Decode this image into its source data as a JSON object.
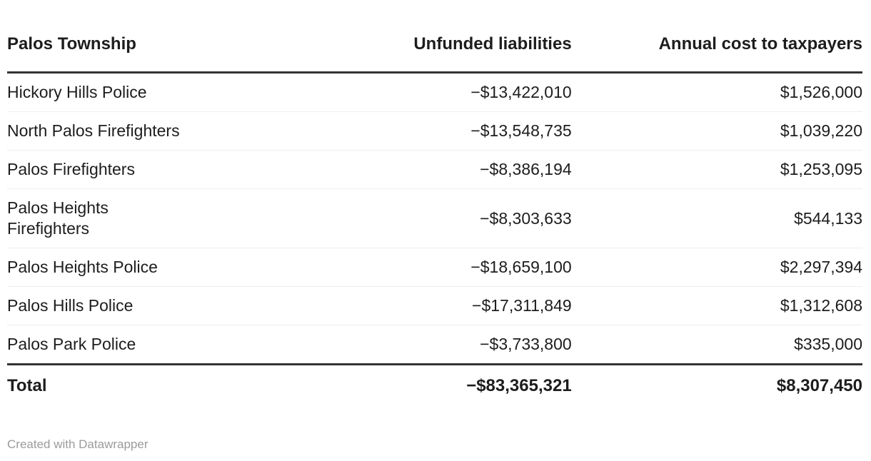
{
  "header": {
    "row_label_column": "Palos Township",
    "col_unfunded": "Unfunded liabilities",
    "col_annual": "Annual cost to taxpayers"
  },
  "rows": [
    {
      "name": "Hickory Hills Police",
      "unfunded": "−$13,422,010",
      "annual": "$1,526,000"
    },
    {
      "name": "North Palos Firefighters",
      "unfunded": "−$13,548,735",
      "annual": "$1,039,220"
    },
    {
      "name": "Palos Firefighters",
      "unfunded": "−$8,386,194",
      "annual": "$1,253,095"
    },
    {
      "name": "Palos Heights\nFirefighters",
      "unfunded": "−$8,303,633",
      "annual": "$544,133"
    },
    {
      "name": "Palos Heights Police",
      "unfunded": "−$18,659,100",
      "annual": "$2,297,394"
    },
    {
      "name": "Palos Hills Police",
      "unfunded": "−$17,311,849",
      "annual": "$1,312,608"
    },
    {
      "name": "Palos Park Police",
      "unfunded": "−$3,733,800",
      "annual": "$335,000"
    }
  ],
  "total": {
    "name": "Total",
    "unfunded": "−$83,365,321",
    "annual": "$8,307,450"
  },
  "footer": {
    "credit": "Created with Datawrapper"
  },
  "colors": {
    "text": "#1d1d1d",
    "thick_rule": "#333333",
    "thin_rule": "#eeeeee",
    "credit_text": "#9b9b9b",
    "background": "#ffffff"
  },
  "chart_data": {
    "type": "table",
    "title": "Palos Township",
    "columns": [
      "Palos Township",
      "Unfunded liabilities",
      "Annual cost to taxpayers"
    ],
    "rows": [
      [
        "Hickory Hills Police",
        -13422010,
        1526000
      ],
      [
        "North Palos Firefighters",
        -13548735,
        1039220
      ],
      [
        "Palos Firefighters",
        -8386194,
        1253095
      ],
      [
        "Palos Heights Firefighters",
        -8303633,
        544133
      ],
      [
        "Palos Heights Police",
        -18659100,
        2297394
      ],
      [
        "Palos Hills Police",
        -17311849,
        1312608
      ],
      [
        "Palos Park Police",
        -3733800,
        335000
      ]
    ],
    "total": [
      "Total",
      -83365321,
      8307450
    ],
    "layout_hints": {
      "first_column_align": "left",
      "value_columns_align": "right",
      "header_rule": "thick",
      "total_rule": "thick",
      "row_separators": "thin-light-gray"
    }
  }
}
